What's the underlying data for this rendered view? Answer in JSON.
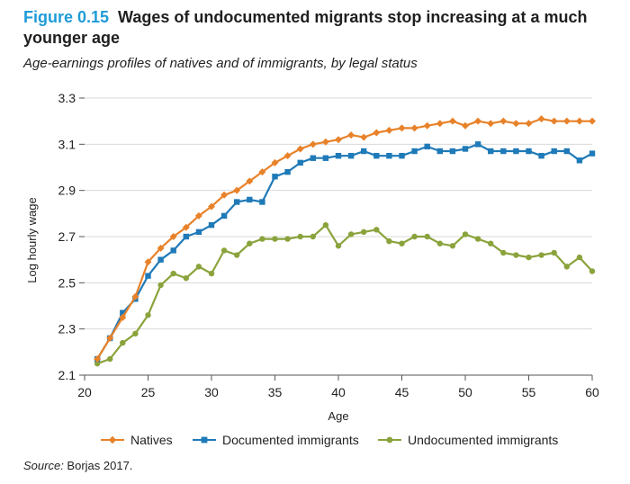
{
  "header": {
    "figure_label": "Figure 0.15",
    "title": "Wages of undocumented migrants stop increasing at a much younger age",
    "subtitle": "Age-earnings profiles of natives and of immigrants, by legal status"
  },
  "footer": {
    "source_label": "Source:",
    "source_text": " Borjas 2017."
  },
  "chart_data": {
    "type": "line",
    "xlabel": "Age",
    "ylabel": "Log hourly wage",
    "xlim": [
      20,
      60
    ],
    "ylim": [
      2.1,
      3.3
    ],
    "xticks": [
      20,
      25,
      30,
      35,
      40,
      45,
      50,
      55,
      60
    ],
    "yticks": [
      2.1,
      2.3,
      2.5,
      2.7,
      2.9,
      3.1,
      3.3
    ],
    "ytick_labels": [
      "2.1",
      "2.3",
      "2.5",
      "2.7",
      "2.9",
      "3.1",
      "3.3"
    ],
    "grid": "horizontal",
    "legend_position": "bottom",
    "x": [
      21,
      22,
      23,
      24,
      25,
      26,
      27,
      28,
      29,
      30,
      31,
      32,
      33,
      34,
      35,
      36,
      37,
      38,
      39,
      40,
      41,
      42,
      43,
      44,
      45,
      46,
      47,
      48,
      49,
      50,
      51,
      52,
      53,
      54,
      55,
      56,
      57,
      58,
      59,
      60
    ],
    "series": [
      {
        "name": "Natives",
        "color": "#e8822a",
        "marker": "diamond",
        "values": [
          2.17,
          2.26,
          2.35,
          2.44,
          2.59,
          2.65,
          2.7,
          2.74,
          2.79,
          2.83,
          2.88,
          2.9,
          2.94,
          2.98,
          3.02,
          3.05,
          3.08,
          3.1,
          3.11,
          3.12,
          3.14,
          3.13,
          3.15,
          3.16,
          3.17,
          3.17,
          3.18,
          3.19,
          3.2,
          3.18,
          3.2,
          3.19,
          3.2,
          3.19,
          3.19,
          3.21,
          3.2,
          3.2,
          3.2,
          3.2
        ]
      },
      {
        "name": "Documented immigrants",
        "color": "#1f7ab8",
        "marker": "square",
        "values": [
          2.17,
          2.26,
          2.37,
          2.43,
          2.53,
          2.6,
          2.64,
          2.7,
          2.72,
          2.75,
          2.79,
          2.85,
          2.86,
          2.85,
          2.96,
          2.98,
          3.02,
          3.04,
          3.04,
          3.05,
          3.05,
          3.07,
          3.05,
          3.05,
          3.05,
          3.07,
          3.09,
          3.07,
          3.07,
          3.08,
          3.1,
          3.07,
          3.07,
          3.07,
          3.07,
          3.05,
          3.07,
          3.07,
          3.03,
          3.06
        ]
      },
      {
        "name": "Undocumented immigrants",
        "color": "#8aa33c",
        "marker": "circle",
        "values": [
          2.15,
          2.17,
          2.24,
          2.28,
          2.36,
          2.49,
          2.54,
          2.52,
          2.57,
          2.54,
          2.64,
          2.62,
          2.67,
          2.69,
          2.69,
          2.69,
          2.7,
          2.7,
          2.75,
          2.66,
          2.71,
          2.72,
          2.73,
          2.68,
          2.67,
          2.7,
          2.7,
          2.67,
          2.66,
          2.71,
          2.69,
          2.67,
          2.63,
          2.62,
          2.61,
          2.62,
          2.63,
          2.57,
          2.61,
          2.55
        ]
      }
    ]
  }
}
